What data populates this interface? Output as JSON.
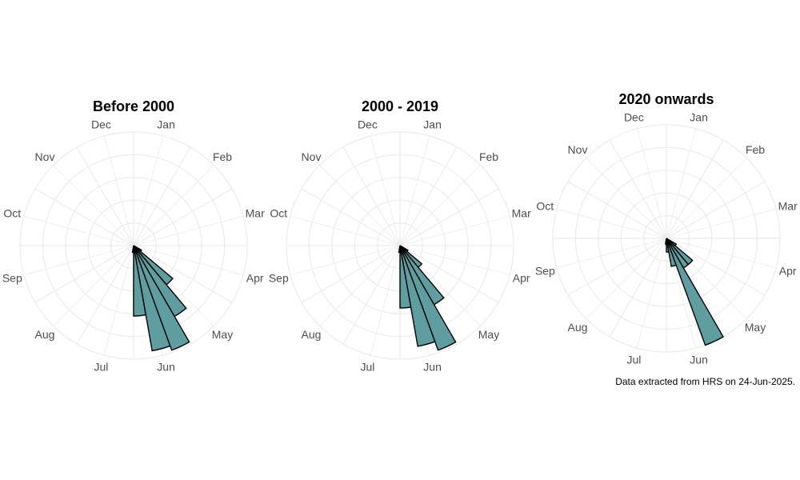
{
  "chart_data": [
    {
      "type": "polar-bar",
      "title": "Before 2000",
      "categories": [
        "Jan",
        "Feb",
        "Mar",
        "Apr",
        "May",
        "Jun",
        "Jul",
        "Aug",
        "Sep",
        "Oct",
        "Nov",
        "Dec"
      ],
      "bins_per_month": 3,
      "bins": [
        {
          "month_start": 4.0,
          "value": 0.08
        },
        {
          "month_start": 4.333,
          "value": 0.45
        },
        {
          "month_start": 4.667,
          "value": 0.72
        },
        {
          "month_start": 5.0,
          "value": 0.98
        },
        {
          "month_start": 5.333,
          "value": 0.94
        },
        {
          "month_start": 5.667,
          "value": 0.62
        },
        {
          "month_start": 6.0,
          "value": 0.06
        }
      ],
      "grid": true
    },
    {
      "type": "polar-bar",
      "title": "2000 - 2019",
      "categories": [
        "Jan",
        "Feb",
        "Mar",
        "Apr",
        "May",
        "Jun",
        "Jul",
        "Aug",
        "Sep",
        "Oct",
        "Nov",
        "Dec"
      ],
      "bins_per_month": 3,
      "bins": [
        {
          "month_start": 4.0,
          "value": 0.08
        },
        {
          "month_start": 4.333,
          "value": 0.25
        },
        {
          "month_start": 4.667,
          "value": 0.6
        },
        {
          "month_start": 5.0,
          "value": 0.98
        },
        {
          "month_start": 5.333,
          "value": 0.9
        },
        {
          "month_start": 5.667,
          "value": 0.55
        },
        {
          "month_start": 6.0,
          "value": 0.06
        }
      ],
      "grid": true
    },
    {
      "type": "polar-bar",
      "title": "2020 onwards",
      "categories": [
        "Jan",
        "Feb",
        "Mar",
        "Apr",
        "May",
        "Jun",
        "Jul",
        "Aug",
        "Sep",
        "Oct",
        "Nov",
        "Dec"
      ],
      "bins_per_month": 3,
      "bins": [
        {
          "month_start": 4.0,
          "value": 0.1
        },
        {
          "month_start": 4.333,
          "value": 0.3
        },
        {
          "month_start": 4.667,
          "value": 0.3
        },
        {
          "month_start": 5.0,
          "value": 1.0
        },
        {
          "month_start": 5.333,
          "value": 0.25
        },
        {
          "month_start": 5.667,
          "value": 0.12
        },
        {
          "month_start": 6.0,
          "value": 0.05
        }
      ],
      "grid": true
    }
  ],
  "caption": "Data extracted from HRS on 24-Jun-2025.",
  "colors": {
    "bar_fill": "#5f9ea0",
    "bar_stroke": "#000000",
    "grid": "#ebebeb",
    "label": "#4d4d4d"
  }
}
